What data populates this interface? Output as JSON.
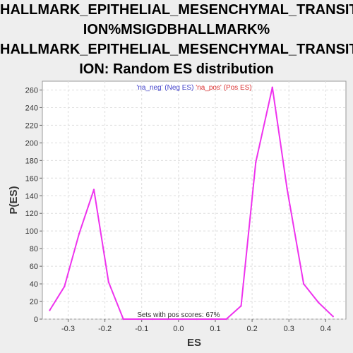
{
  "chart_data": {
    "type": "line",
    "title_lines": [
      "HALLMARK_EPITHELIAL_MESENCHYMAL_TRANSIT",
      "ION%MSIGDBHALLMARK%",
      "HALLMARK_EPITHELIAL_MESENCHYMAL_TRANSIT",
      "ION: Random ES distribution"
    ],
    "xlabel": "ES",
    "ylabel": "P(ES)",
    "xlim": [
      -0.37,
      0.455
    ],
    "ylim": [
      0,
      270
    ],
    "xticks": [
      -0.3,
      -0.2,
      -0.1,
      0.0,
      0.1,
      0.2,
      0.3,
      0.4
    ],
    "xtick_labels": [
      "-0.3",
      "-0.2",
      "-0.1",
      "0.0",
      "0.1",
      "0.2",
      "0.3",
      "0.4"
    ],
    "yticks": [
      0,
      20,
      40,
      60,
      80,
      100,
      120,
      140,
      160,
      180,
      200,
      220,
      240,
      260
    ],
    "grid": true,
    "legend": [
      {
        "text": "'na_neg' (Neg ES)",
        "color": "#4444cc"
      },
      {
        "text": "'na_pos' (Pos ES)",
        "color": "#dd3333"
      }
    ],
    "annotation": "Sets with pos scores: 67%",
    "series": [
      {
        "color": "#ee33ee",
        "x": [
          -0.35,
          -0.31,
          -0.27,
          -0.23,
          -0.19,
          -0.15,
          -0.11,
          -0.07,
          -0.03,
          0.01,
          0.05,
          0.09,
          0.13,
          0.17,
          0.21,
          0.255,
          0.295,
          0.34,
          0.38,
          0.42
        ],
        "y": [
          10,
          37,
          97,
          147,
          42,
          0,
          0,
          0,
          0,
          0,
          0,
          0,
          0,
          15,
          178,
          263,
          148,
          40,
          19,
          3
        ]
      }
    ]
  }
}
